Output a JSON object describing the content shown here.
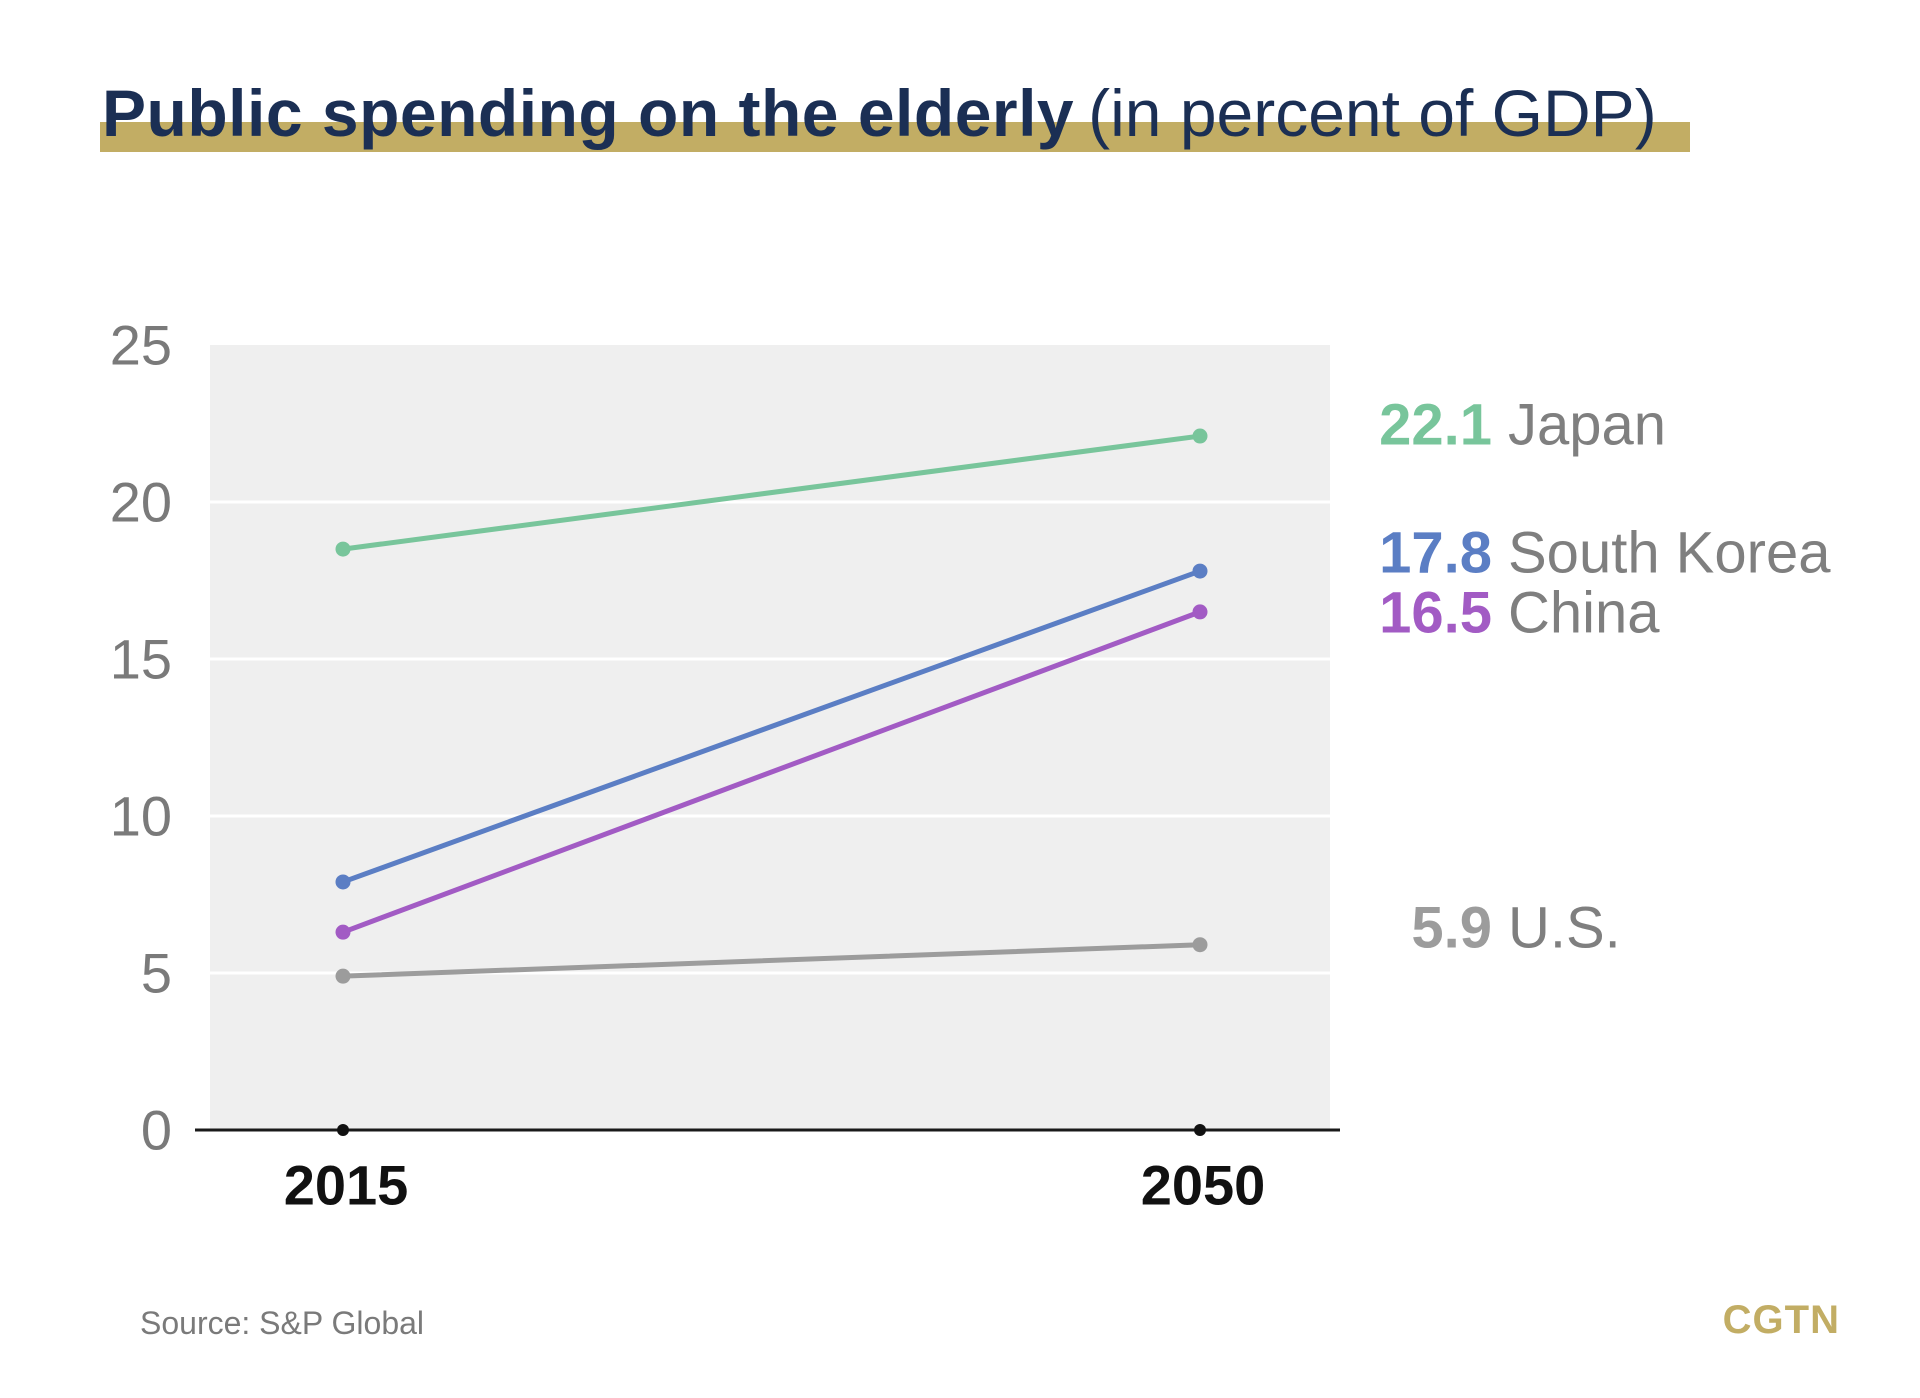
{
  "title": {
    "main": "Public spending on the elderly",
    "sub": "(in percent of GDP)"
  },
  "source": "Source: S&P Global",
  "logo": "CGTN",
  "colors": {
    "title": "#1b2f54",
    "accent_bar": "#c2ad64",
    "plot_bg": "#efefef",
    "tick_label": "#7a7a7a",
    "label_name": "#7f7f7f"
  },
  "chart_data": {
    "type": "line",
    "x": [
      "2015",
      "2050"
    ],
    "ylim": [
      0,
      25
    ],
    "yticks": [
      "0",
      "5",
      "10",
      "15",
      "20",
      "25"
    ],
    "grid": true,
    "series": [
      {
        "name": "Japan",
        "values": [
          18.5,
          22.1
        ],
        "end_label": "22.1",
        "color": "#78c59b"
      },
      {
        "name": "South Korea",
        "values": [
          7.9,
          17.8
        ],
        "end_label": "17.8",
        "color": "#5b7ec4"
      },
      {
        "name": "China",
        "values": [
          6.3,
          16.5
        ],
        "end_label": "16.5",
        "color": "#a25bc4"
      },
      {
        "name": "U.S.",
        "values": [
          4.9,
          5.9
        ],
        "end_label": "5.9",
        "color": "#9c9c9c"
      }
    ]
  }
}
